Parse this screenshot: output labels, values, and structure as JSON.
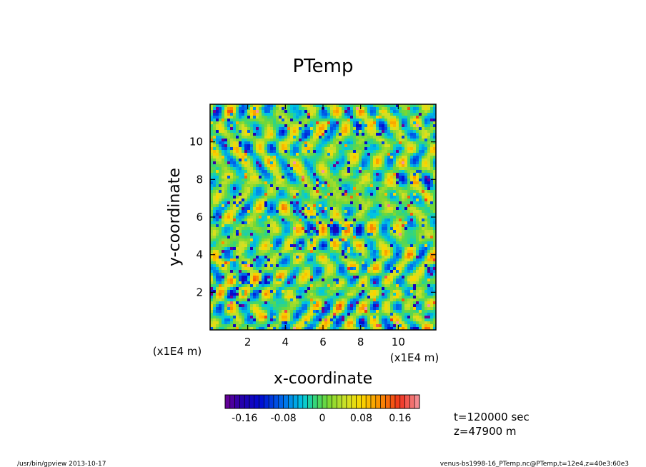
{
  "chart_data": {
    "type": "heatmap",
    "title": "PTemp",
    "xlabel": "x-coordinate",
    "ylabel": "y-coordinate",
    "x_unit_label": "(x1E4 m)",
    "y_unit_label": "(x1E4 m)",
    "xlim": [
      0,
      12
    ],
    "ylim": [
      0,
      12
    ],
    "x_ticks": [
      2,
      4,
      6,
      8,
      10
    ],
    "y_ticks": [
      2,
      4,
      6,
      8,
      10
    ],
    "colorbar": {
      "range": [
        -0.2,
        0.2
      ],
      "tick_values": [
        -0.16,
        -0.08,
        0,
        0.08,
        0.16
      ],
      "tick_labels": [
        "-0.16",
        "-0.08",
        "0",
        "0.08",
        "0.16"
      ],
      "n_levels": 40
    },
    "annotations": [
      "t=120000 sec",
      "z=47900 m"
    ]
  },
  "footer": {
    "left": "/usr/bin/gpview   2013-10-17",
    "right": "venus-bs1998-16_PTemp.nc@PTemp,t=12e4,z=40e3:60e3"
  }
}
